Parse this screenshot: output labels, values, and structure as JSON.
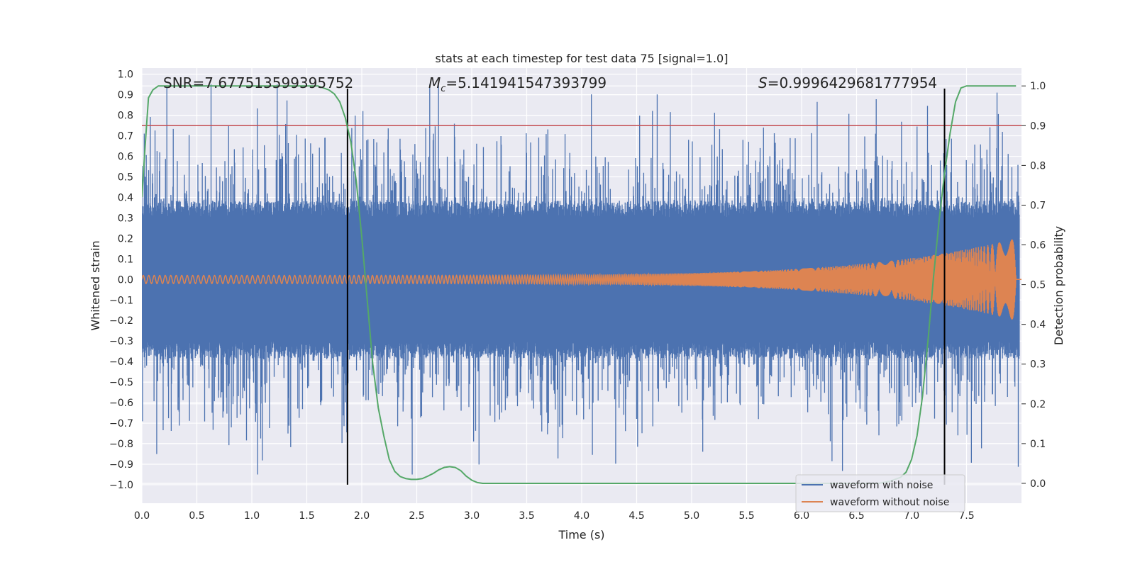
{
  "chart_data": {
    "type": "line",
    "title": "stats at each timestep for test data 75 [signal=1.0]",
    "xlabel": "Time (s)",
    "ylabel": "Whitened strain",
    "y2label": "Detection probability",
    "xlim": [
      0.0,
      8.0
    ],
    "ylim": [
      -1.09,
      1.03
    ],
    "y2lim": [
      -0.05,
      1.045
    ],
    "x_ticks": [
      0.0,
      0.5,
      1.0,
      1.5,
      2.0,
      2.5,
      3.0,
      3.5,
      4.0,
      4.5,
      5.0,
      5.5,
      6.0,
      6.5,
      7.0,
      7.5
    ],
    "x_tick_labels": [
      "0.0",
      "0.5",
      "1.0",
      "1.5",
      "2.0",
      "2.5",
      "3.0",
      "3.5",
      "4.0",
      "4.5",
      "5.0",
      "5.5",
      "6.0",
      "6.5",
      "7.0",
      "7.5"
    ],
    "y_ticks": [
      1.0,
      0.9,
      0.8,
      0.7,
      0.6,
      0.5,
      0.4,
      0.3,
      0.2,
      0.1,
      0.0,
      -0.1,
      -0.2,
      -0.3,
      -0.4,
      -0.5,
      -0.6,
      -0.7,
      -0.8,
      -0.9,
      -1.0
    ],
    "y_tick_labels": [
      "1.0",
      "0.9",
      "0.8",
      "0.7",
      "0.6",
      "0.5",
      "0.4",
      "0.3",
      "0.2",
      "0.1",
      "0.0",
      "−0.1",
      "−0.2",
      "−0.3",
      "−0.4",
      "−0.5",
      "−0.6",
      "−0.7",
      "−0.8",
      "−0.9",
      "−1.0"
    ],
    "y2_ticks": [
      1.0,
      0.9,
      0.8,
      0.7,
      0.6,
      0.5,
      0.4,
      0.3,
      0.2,
      0.1,
      0.0
    ],
    "y2_tick_labels": [
      "1.0",
      "0.9",
      "0.8",
      "0.7",
      "0.6",
      "0.5",
      "0.4",
      "0.3",
      "0.2",
      "0.1",
      "0.0"
    ],
    "annotations": {
      "snr": "SNR=7.677513599395752",
      "mc_symbol": "M",
      "mc_sub": "c",
      "mc_value": "=5.141941547393799",
      "s_symbol": "S",
      "s_value": "=0.9996429681777954"
    },
    "vlines_x": [
      1.87,
      7.3
    ],
    "vline_range": [
      -1.0,
      0.93
    ],
    "threshold_probability": 0.9,
    "series": [
      {
        "name": "waveform with noise",
        "color": "#4c72b0",
        "description": "noisy whitened strain, envelope roughly ±0.35 with spikes up to ±0.95",
        "envelope": 0.35
      },
      {
        "name": "waveform without noise",
        "color": "#dd8452",
        "description": "chirp signal, amplitude grows from ~0.02 to ~0.2 ending at ~7.95 s",
        "amp_start": 0.02,
        "amp_end": 0.2,
        "t_end": 7.95
      },
      {
        "name": "detection probability",
        "color": "#55a868",
        "axis": "right",
        "x": [
          0.0,
          0.03,
          0.06,
          0.1,
          0.15,
          0.2,
          0.3,
          0.5,
          0.8,
          1.0,
          1.2,
          1.4,
          1.5,
          1.6,
          1.7,
          1.75,
          1.8,
          1.85,
          1.9,
          1.95,
          2.0,
          2.05,
          2.1,
          2.15,
          2.2,
          2.25,
          2.3,
          2.35,
          2.4,
          2.45,
          2.5,
          2.55,
          2.6,
          2.65,
          2.7,
          2.75,
          2.8,
          2.85,
          2.9,
          2.95,
          3.0,
          3.05,
          3.1,
          3.2,
          3.5,
          4.0,
          5.0,
          6.0,
          6.5,
          6.7,
          6.8,
          6.9,
          6.95,
          7.0,
          7.05,
          7.1,
          7.15,
          7.2,
          7.25,
          7.3,
          7.35,
          7.4,
          7.45,
          7.5,
          7.6,
          7.7,
          7.8,
          7.9,
          7.95
        ],
        "y": [
          0.72,
          0.85,
          0.97,
          0.99,
          1.0,
          1.0,
          1.0,
          1.0,
          1.0,
          1.0,
          1.0,
          1.0,
          1.0,
          1.0,
          0.99,
          0.98,
          0.96,
          0.92,
          0.86,
          0.76,
          0.62,
          0.46,
          0.3,
          0.19,
          0.12,
          0.06,
          0.03,
          0.017,
          0.012,
          0.01,
          0.01,
          0.012,
          0.018,
          0.025,
          0.034,
          0.04,
          0.042,
          0.04,
          0.032,
          0.018,
          0.008,
          0.002,
          0.0,
          0.0,
          0.0,
          0.0,
          0.0,
          0.0,
          0.0,
          0.0,
          0.005,
          0.015,
          0.028,
          0.06,
          0.12,
          0.22,
          0.36,
          0.52,
          0.66,
          0.78,
          0.88,
          0.96,
          0.995,
          1.0,
          1.0,
          1.0,
          1.0,
          1.0,
          1.0
        ]
      }
    ],
    "legend": [
      "waveform with noise",
      "waveform without noise"
    ],
    "legend_position": "lower-right",
    "grid": true
  },
  "colors": {
    "plot_bg": "#eaeaf2",
    "grid": "#ffffff",
    "noisy": "#4c72b0",
    "clean": "#dd8452",
    "prob": "#55a868",
    "threshold": "#c44e52",
    "vline": "#000000"
  }
}
